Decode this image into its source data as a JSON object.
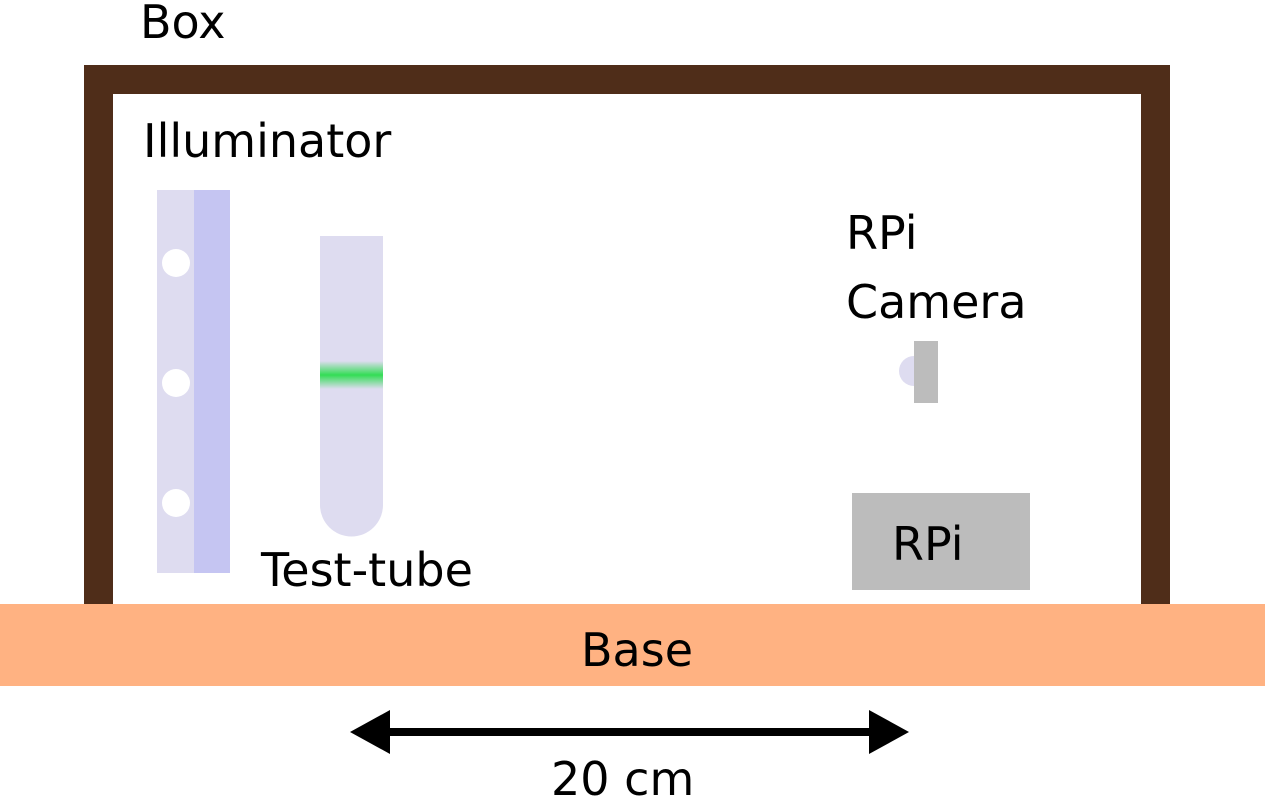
{
  "labels": {
    "box": "Box",
    "illuminator": "Illuminator",
    "camera_line1": "RPi",
    "camera_line2": "Camera",
    "rpi": "RPi",
    "test_tube": "Test-tube",
    "base": "Base",
    "distance": "20 cm"
  },
  "colors": {
    "box_wall": "#4f2d19",
    "base": "#ffb282",
    "illuminator_panel": "#dedcf0",
    "illuminator_strip": "#c5c5f2",
    "led": "#ffffff",
    "test_tube": "#dedcf0",
    "sample_band": "#33dd55",
    "camera_body": "#bcbcbc",
    "camera_lens": "#dedcf0",
    "rpi_board": "#bcbcbc",
    "arrow": "#000000"
  }
}
